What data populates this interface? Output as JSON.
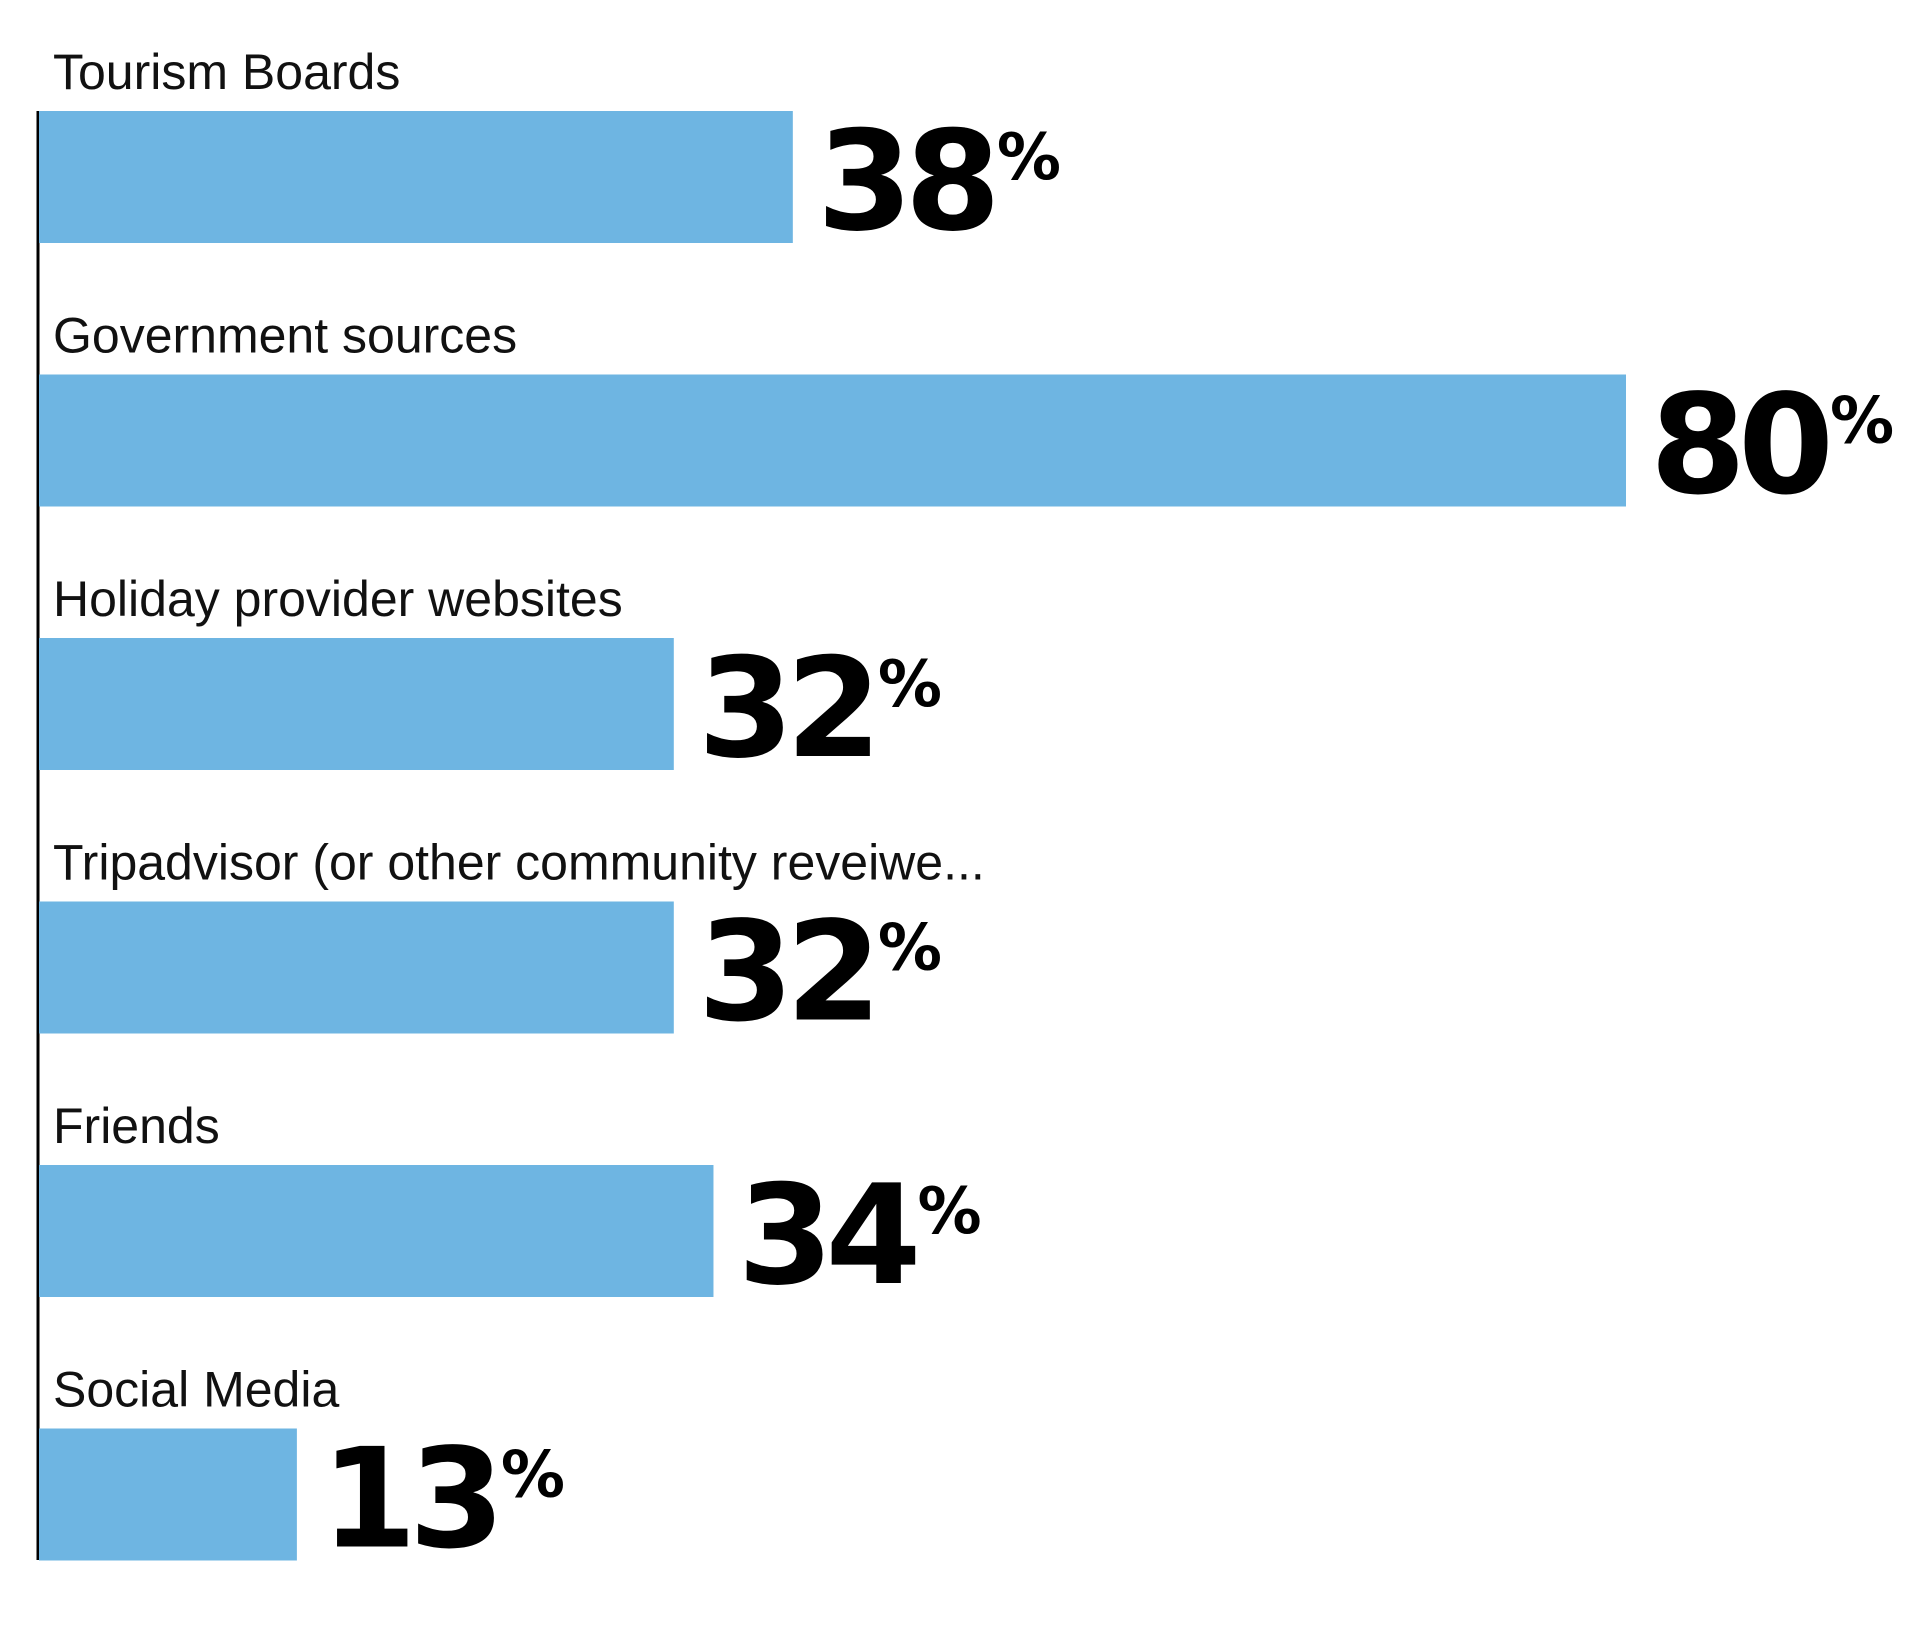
{
  "chart_data": {
    "type": "bar",
    "orientation": "horizontal",
    "categories": [
      "Tourism Boards",
      "Government sources",
      "Holiday provider websites",
      "Tripadvisor (or other community reveiwe...",
      "Friends",
      "Social Media"
    ],
    "values": [
      38,
      80,
      32,
      32,
      34,
      13
    ],
    "value_labels": [
      "38",
      "80",
      "32",
      "32",
      "34",
      "13"
    ],
    "unit_symbol": "%",
    "title": "",
    "xlabel": "",
    "ylabel": "",
    "xlim": [
      0,
      80
    ],
    "grid": false,
    "bar_color": "#6EB5E2",
    "axis_color": "#000000"
  }
}
